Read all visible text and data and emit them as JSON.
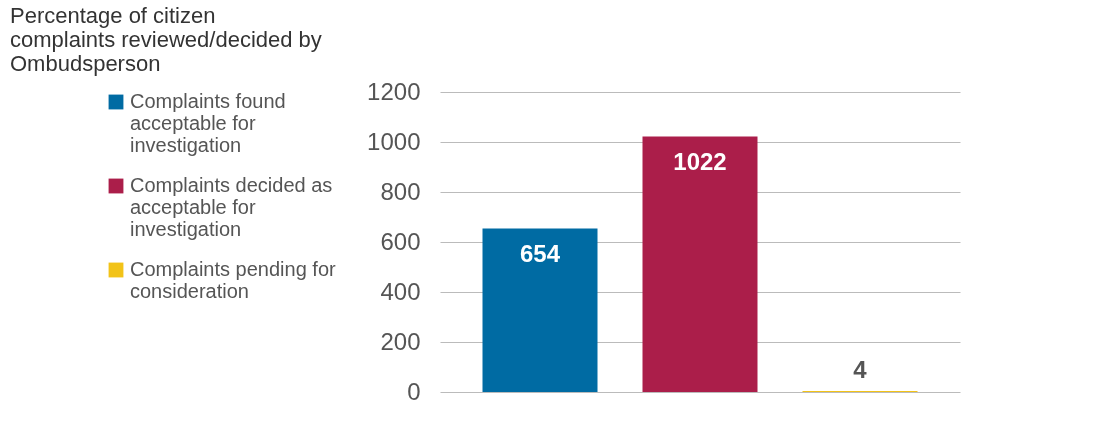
{
  "chart_data": {
    "type": "bar",
    "title": "Percentage of citizen complaints reviewed/decided by Ombudsperson",
    "categories": [
      null,
      null,
      null
    ],
    "series": [
      {
        "name": "Complaints found acceptable for investigation",
        "color": "#006ba3",
        "values": [
          654,
          null,
          null
        ]
      },
      {
        "name": "Complaints decided as acceptable for investigation",
        "color": "#ab1e4a",
        "values": [
          null,
          1022,
          null
        ]
      },
      {
        "name": "Complaints pending for consideration",
        "color": "#f2c318",
        "values": [
          null,
          null,
          4
        ]
      }
    ],
    "ylim": [
      0,
      1200
    ],
    "yticks": [
      0,
      200,
      400,
      600,
      800,
      1000,
      1200
    ],
    "grid": "y",
    "legend": "left",
    "data_labels": true
  }
}
